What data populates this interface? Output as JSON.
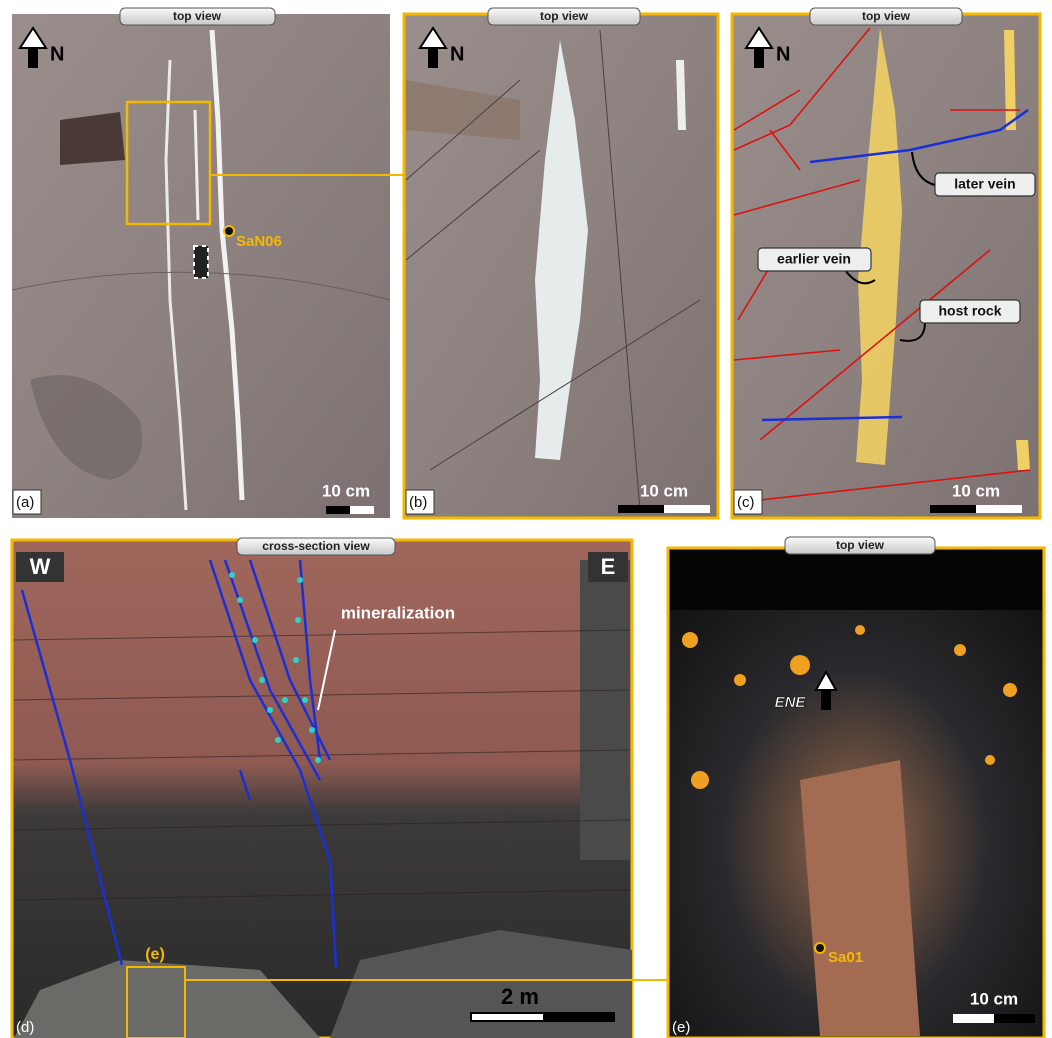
{
  "panels": [
    {
      "label": "(a)",
      "view": "top view",
      "north": "N",
      "sample": "SaN06",
      "scale": "10 cm"
    },
    {
      "label": "(b)",
      "view": "top view",
      "north": "N",
      "scale": "10 cm"
    },
    {
      "label": "(c)",
      "view": "top view",
      "north": "N",
      "scale": "10 cm",
      "annotations": [
        "later vein",
        "earlier vein",
        "host rock"
      ]
    },
    {
      "label": "(d)",
      "view": "cross-section view",
      "west": "W",
      "east": "E",
      "annotations": [
        "mineralization"
      ],
      "inset": "(e)",
      "scale": "2 m"
    },
    {
      "label": "(e)",
      "view": "top view",
      "direction": "ENE",
      "sample": "Sa01",
      "scale": "10 cm"
    }
  ]
}
